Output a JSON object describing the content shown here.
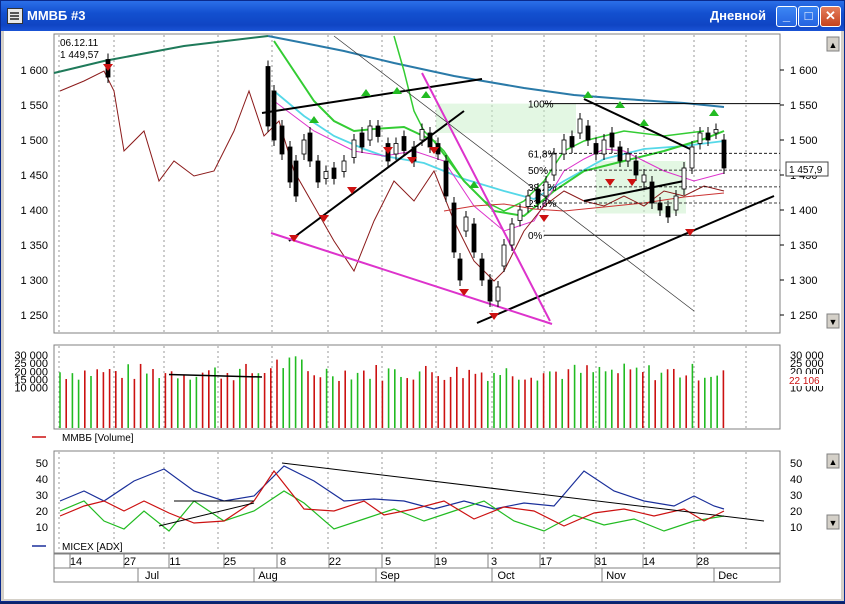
{
  "window": {
    "title": "ММВБ #3",
    "period": "Дневной",
    "minimize": "_",
    "maximize": "□",
    "close": "✕"
  },
  "colors": {
    "titlebar": "#1350d0",
    "up": "#22bb22",
    "down": "#cc1111",
    "ma_green": "#33cc33",
    "ma_cyan": "#55d8e8",
    "ma_teal": "#2a7aa8",
    "magenta": "#dd33cc",
    "volume": "#cc1111"
  },
  "price_panel": {
    "header_date": "06.12.11",
    "header_value": "1 449,57",
    "y_ticks": [
      "1 600",
      "1 550",
      "1 500",
      "1 450",
      "1 400",
      "1 350",
      "1 300",
      "1 250"
    ],
    "y_values": [
      1600,
      1550,
      1500,
      1450,
      1400,
      1350,
      1300,
      1250
    ],
    "last_price": "1 457,9",
    "last_price_value": 1457.9,
    "fib_labels": [
      "100%",
      "61,8%",
      "50%",
      "38,2%",
      "23,6%",
      "0%"
    ],
    "fib_values": [
      1552,
      1481,
      1457,
      1433,
      1410,
      1364
    ]
  },
  "volume_panel": {
    "y_ticks": [
      "30 000",
      "25 000",
      "20 000",
      "15 000",
      "10 000"
    ],
    "y_values": [
      30000,
      25000,
      20000,
      15000,
      10000
    ],
    "last_value": "22 106",
    "legend": "ММВБ [Volume]"
  },
  "adx_panel": {
    "y_ticks": [
      "50",
      "40",
      "30",
      "20",
      "10"
    ],
    "y_values": [
      50,
      40,
      30,
      20,
      10
    ],
    "legend": "MICEX [ADX]"
  },
  "date_axis": {
    "days": [
      "14",
      "27",
      "11",
      "25",
      "8",
      "22",
      "5",
      "19",
      "3",
      "17",
      "31",
      "14",
      "28"
    ],
    "months": [
      "Jul",
      "Aug",
      "Sep",
      "Oct",
      "Nov",
      "Dec"
    ]
  },
  "scroll": {
    "up": "▲",
    "down": "▼"
  }
}
